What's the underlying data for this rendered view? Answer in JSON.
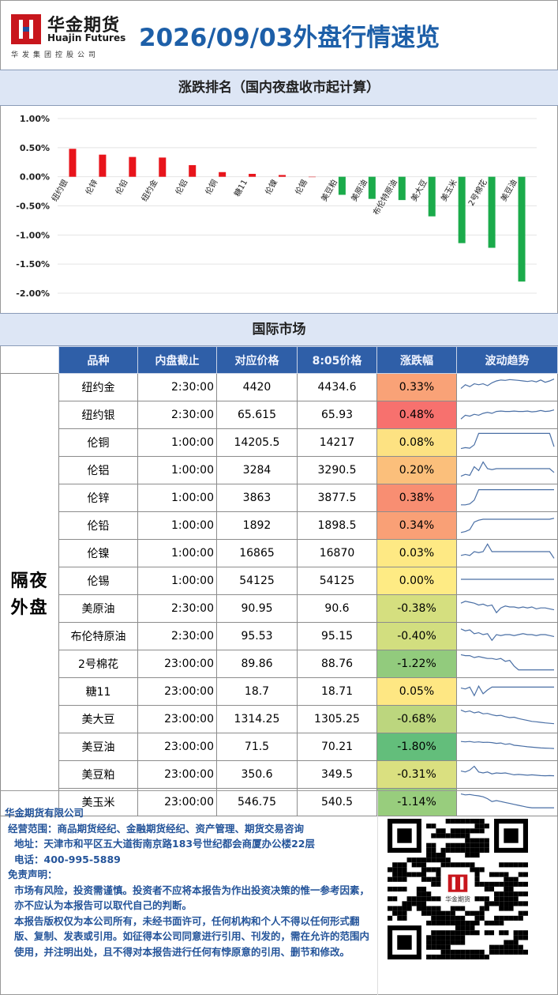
{
  "header": {
    "brand_cn": "华金期货",
    "brand_en": "Huajin Futures",
    "brand_sub": "华发集团控股公司",
    "title": "2026/09/03外盘行情速览"
  },
  "chart_section_title": "涨跌排名（国内夜盘收市起计算）",
  "market_section_title": "国际市场",
  "chart_data": {
    "type": "bar",
    "categories": [
      "纽约银",
      "伦锌",
      "伦铅",
      "纽约金",
      "伦铝",
      "伦铜",
      "糖11",
      "伦镍",
      "伦锡",
      "美豆粕",
      "美原油",
      "布伦特原油",
      "美大豆",
      "美玉米",
      "2号棉花",
      "美豆油"
    ],
    "values": [
      0.48,
      0.38,
      0.34,
      0.33,
      0.2,
      0.08,
      0.05,
      0.03,
      0.0,
      -0.31,
      -0.38,
      -0.4,
      -0.68,
      -1.14,
      -1.22,
      -1.8
    ],
    "ylim": [
      -2.0,
      1.0
    ],
    "yticks": [
      "1.00%",
      "0.50%",
      "0.00%",
      "-0.50%",
      "-1.00%",
      "-1.50%",
      "-2.00%"
    ],
    "positive_color": "#e8141b",
    "negative_color": "#1bab4b",
    "title": "",
    "xlabel": "",
    "ylabel": ""
  },
  "table": {
    "group_label_line1": "隔夜",
    "group_label_line2": "外盘",
    "columns": [
      "品种",
      "内盘截止",
      "对应价格",
      "8:05价格",
      "涨跌幅",
      "波动趋势"
    ],
    "rows": [
      {
        "name": "纽约金",
        "cutoff": "2:30:00",
        "ref": "4420",
        "price": "4434.6",
        "chg": "0.33%",
        "color": "#f9a277",
        "trend": [
          0.35,
          0.55,
          0.45,
          0.6,
          0.55,
          0.6,
          0.5,
          0.65,
          0.75,
          0.8,
          0.78,
          0.82,
          0.8,
          0.78,
          0.75,
          0.72,
          0.76,
          0.7,
          0.8,
          0.68,
          0.75,
          0.85
        ]
      },
      {
        "name": "纽约银",
        "cutoff": "2:30:00",
        "ref": "65.615",
        "price": "65.93",
        "chg": "0.48%",
        "color": "#f7716e",
        "trend": [
          0.2,
          0.4,
          0.35,
          0.45,
          0.4,
          0.5,
          0.55,
          0.5,
          0.6,
          0.62,
          0.6,
          0.6,
          0.62,
          0.6,
          0.6,
          0.62,
          0.58,
          0.6,
          0.65,
          0.6,
          0.62,
          0.68
        ]
      },
      {
        "name": "伦铜",
        "cutoff": "1:00:00",
        "ref": "14205.5",
        "price": "14217",
        "chg": "0.08%",
        "color": "#fde282",
        "trend": [
          0.1,
          0.15,
          0.12,
          0.3,
          0.9,
          0.9,
          0.9,
          0.9,
          0.9,
          0.9,
          0.9,
          0.9,
          0.9,
          0.9,
          0.9,
          0.9,
          0.9,
          0.9,
          0.9,
          0.9,
          0.9,
          0.2
        ]
      },
      {
        "name": "伦铝",
        "cutoff": "1:00:00",
        "ref": "3284",
        "price": "3290.5",
        "chg": "0.20%",
        "color": "#fbbf7b",
        "trend": [
          0.1,
          0.2,
          0.15,
          0.6,
          0.4,
          0.85,
          0.5,
          0.45,
          0.5,
          0.5,
          0.5,
          0.5,
          0.5,
          0.5,
          0.5,
          0.5,
          0.5,
          0.5,
          0.5,
          0.5,
          0.5,
          0.3
        ]
      },
      {
        "name": "伦锌",
        "cutoff": "1:00:00",
        "ref": "3863",
        "price": "3877.5",
        "chg": "0.38%",
        "color": "#f88e72",
        "trend": [
          0.05,
          0.05,
          0.1,
          0.3,
          0.85,
          0.85,
          0.85,
          0.85,
          0.85,
          0.85,
          0.85,
          0.85,
          0.85,
          0.85,
          0.85,
          0.85,
          0.85,
          0.85,
          0.85,
          0.85,
          0.85,
          0.85
        ]
      },
      {
        "name": "伦铅",
        "cutoff": "1:00:00",
        "ref": "1892",
        "price": "1898.5",
        "chg": "0.34%",
        "color": "#f9a076",
        "trend": [
          0.05,
          0.1,
          0.2,
          0.6,
          0.7,
          0.75,
          0.75,
          0.75,
          0.75,
          0.75,
          0.75,
          0.75,
          0.75,
          0.75,
          0.75,
          0.75,
          0.75,
          0.75,
          0.75,
          0.75,
          0.75,
          0.8
        ]
      },
      {
        "name": "伦镍",
        "cutoff": "1:00:00",
        "ref": "16865",
        "price": "16870",
        "chg": "0.03%",
        "color": "#fee984",
        "trend": [
          0.3,
          0.35,
          0.3,
          0.5,
          0.45,
          0.5,
          0.9,
          0.5,
          0.5,
          0.5,
          0.5,
          0.5,
          0.5,
          0.5,
          0.5,
          0.5,
          0.5,
          0.5,
          0.5,
          0.5,
          0.5,
          0.15
        ]
      },
      {
        "name": "伦锡",
        "cutoff": "1:00:00",
        "ref": "54125",
        "price": "54125",
        "chg": "0.00%",
        "color": "#feeb84",
        "trend": [
          0.5,
          0.5,
          0.5,
          0.5,
          0.5,
          0.5,
          0.5,
          0.5,
          0.5,
          0.5,
          0.5,
          0.5,
          0.5,
          0.5,
          0.5,
          0.5,
          0.5,
          0.5,
          0.5,
          0.5,
          0.5,
          0.5
        ]
      },
      {
        "name": "美原油",
        "cutoff": "2:30:00",
        "ref": "90.95",
        "price": "90.6",
        "chg": "-0.38%",
        "color": "#d5df7f",
        "trend": [
          0.7,
          0.8,
          0.75,
          0.7,
          0.6,
          0.65,
          0.55,
          0.6,
          0.2,
          0.45,
          0.55,
          0.5,
          0.5,
          0.45,
          0.5,
          0.45,
          0.5,
          0.4,
          0.45,
          0.45,
          0.4,
          0.35
        ]
      },
      {
        "name": "布伦特原油",
        "cutoff": "2:30:00",
        "ref": "95.53",
        "price": "95.15",
        "chg": "-0.40%",
        "color": "#d2de7f",
        "trend": [
          0.8,
          0.7,
          0.75,
          0.55,
          0.6,
          0.5,
          0.55,
          0.2,
          0.5,
          0.45,
          0.5,
          0.5,
          0.45,
          0.5,
          0.55,
          0.5,
          0.5,
          0.45,
          0.5,
          0.5,
          0.45,
          0.4
        ]
      },
      {
        "name": "2号棉花",
        "cutoff": "23:00:00",
        "ref": "89.86",
        "price": "88.76",
        "chg": "-1.22%",
        "color": "#92cb7d",
        "trend": [
          0.9,
          0.85,
          0.85,
          0.75,
          0.8,
          0.75,
          0.7,
          0.7,
          0.65,
          0.7,
          0.55,
          0.6,
          0.3,
          0.1,
          0.1,
          0.1,
          0.1,
          0.1,
          0.1,
          0.1,
          0.1,
          0.1
        ]
      },
      {
        "name": "糖11",
        "cutoff": "23:00:00",
        "ref": "18.7",
        "price": "18.71",
        "chg": "0.05%",
        "color": "#fee783",
        "trend": [
          0.6,
          0.55,
          0.65,
          0.2,
          0.7,
          0.3,
          0.5,
          0.65,
          0.65,
          0.65,
          0.65,
          0.65,
          0.65,
          0.65,
          0.65,
          0.65,
          0.65,
          0.65,
          0.65,
          0.65,
          0.65,
          0.65
        ]
      },
      {
        "name": "美大豆",
        "cutoff": "23:00:00",
        "ref": "1314.25",
        "price": "1305.25",
        "chg": "-0.68%",
        "color": "#bcd67e",
        "trend": [
          0.9,
          0.8,
          0.85,
          0.75,
          0.8,
          0.7,
          0.72,
          0.65,
          0.6,
          0.62,
          0.55,
          0.5,
          0.52,
          0.45,
          0.4,
          0.35,
          0.3,
          0.28,
          0.25,
          0.22,
          0.2,
          0.18
        ]
      },
      {
        "name": "美豆油",
        "cutoff": "23:00:00",
        "ref": "71.5",
        "price": "70.21",
        "chg": "-1.80%",
        "color": "#63be7b",
        "trend": [
          0.7,
          0.68,
          0.7,
          0.66,
          0.68,
          0.65,
          0.66,
          0.64,
          0.6,
          0.62,
          0.55,
          0.58,
          0.5,
          0.48,
          0.45,
          0.42,
          0.4,
          0.38,
          0.36,
          0.35,
          0.34,
          0.33
        ]
      },
      {
        "name": "美豆粕",
        "cutoff": "23:00:00",
        "ref": "350.6",
        "price": "349.5",
        "chg": "-0.31%",
        "color": "#dae080",
        "trend": [
          0.6,
          0.55,
          0.65,
          0.85,
          0.55,
          0.5,
          0.55,
          0.45,
          0.5,
          0.48,
          0.5,
          0.45,
          0.4,
          0.42,
          0.4,
          0.38,
          0.4,
          0.38,
          0.36,
          0.35,
          0.36,
          0.35
        ]
      },
      {
        "name": "美玉米",
        "cutoff": "23:00:00",
        "ref": "546.75",
        "price": "540.5",
        "chg": "-1.14%",
        "color": "#98cd7d",
        "trend": [
          0.85,
          0.8,
          0.82,
          0.78,
          0.75,
          0.7,
          0.6,
          0.45,
          0.5,
          0.45,
          0.4,
          0.35,
          0.3,
          0.25,
          0.2,
          0.15,
          0.12,
          0.12,
          0.12,
          0.12,
          0.12,
          0.12
        ]
      }
    ]
  },
  "footer": {
    "company": "华金期货有限公司",
    "scope": "经营范围：商品期货经纪、金融期货经纪、资产管理、期货交易咨询",
    "address": "地址：天津市和平区五大道街南京路183号世纪都会商厦办公楼22层",
    "phone": "电话：400-995-5889",
    "disclaimer_title": "免责声明：",
    "disclaimer_1": "市场有风险，投资需谨慎。投资者不应将本报告为作出投资决策的惟一参考因素，亦不应认为本报告可以取代自己的判断。",
    "disclaimer_2": "本报告版权仅为本公司所有，未经书面许可，任何机构和个人不得以任何形式翻版、复制、发表或引用。如征得本公司同意进行引用、刊发的，需在允许的范围内使用，并注明出处，且不得对本报告进行任何有悖原意的引用、删节和修改。",
    "qr_label": "华金期货"
  }
}
